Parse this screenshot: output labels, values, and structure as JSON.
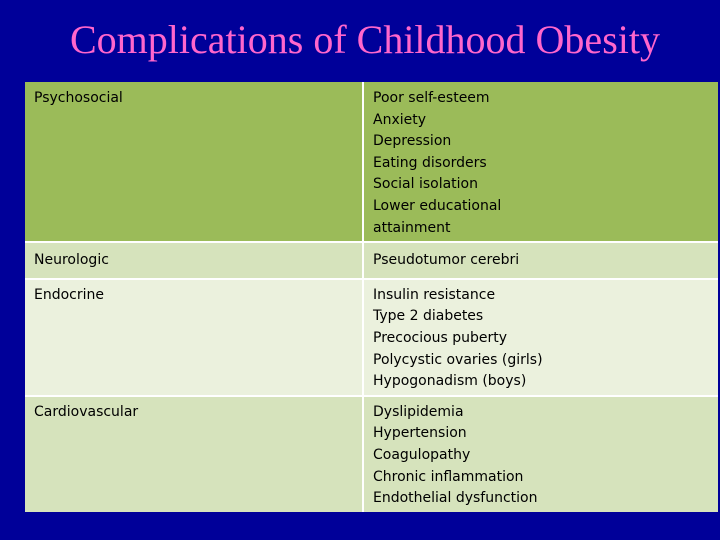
{
  "title": "Complications of Childhood Obesity",
  "rows": [
    {
      "category": "Psychosocial",
      "items": [
        "Poor self-esteem",
        "Anxiety",
        "Depression",
        "Eating disorders",
        "Social isolation",
        "Lower educational attainment"
      ]
    },
    {
      "category": "Neurologic",
      "items": [
        "Pseudotumor cerebri"
      ]
    },
    {
      "category": "Endocrine",
      "items": [
        "Insulin resistance",
        "Type 2 diabetes",
        "Precocious puberty",
        "Polycystic ovaries (girls)",
        "Hypogonadism (boys)"
      ]
    },
    {
      "category": "Cardiovascular",
      "items": [
        "Dyslipidemia",
        "Hypertension",
        "Coagulopathy",
        "Chronic inflammation",
        "Endothelial dysfunction"
      ]
    }
  ],
  "colors": {
    "background": "#000099",
    "title": "#ff66cc",
    "header_row": "#9bbb59",
    "band_dark": "#d6e3bc",
    "band_light": "#ebf1dd"
  }
}
